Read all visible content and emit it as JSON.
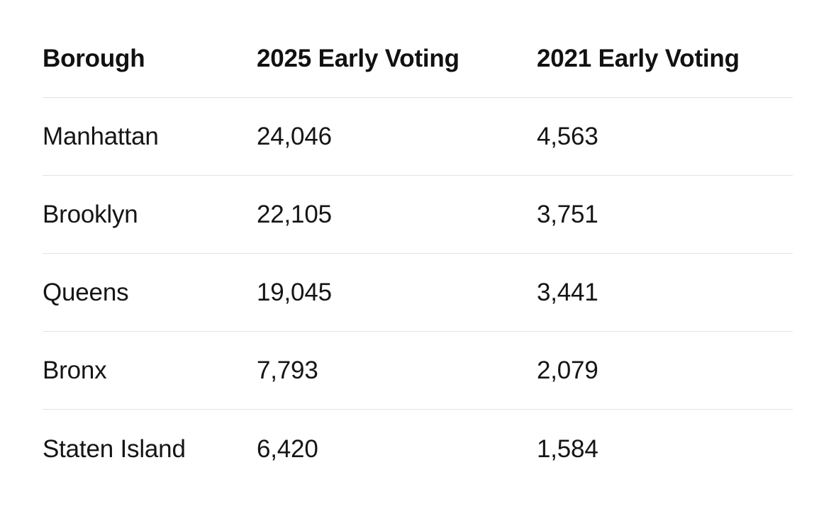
{
  "table": {
    "columns": [
      "Borough",
      "2025 Early Voting",
      "2021 Early Voting"
    ],
    "rows": [
      {
        "borough": "Manhattan",
        "ev2025": "24,046",
        "ev2021": "4,563"
      },
      {
        "borough": "Brooklyn",
        "ev2025": "22,105",
        "ev2021": "3,751"
      },
      {
        "borough": "Queens",
        "ev2025": "19,045",
        "ev2021": "3,441"
      },
      {
        "borough": "Bronx",
        "ev2025": "7,793",
        "ev2021": "2,079"
      },
      {
        "borough": "Staten Island",
        "ev2025": "6,420",
        "ev2021": "1,584"
      }
    ]
  },
  "chart_data": {
    "type": "table",
    "columns": [
      "Borough",
      "2025 Early Voting",
      "2021 Early Voting"
    ],
    "rows": [
      [
        "Manhattan",
        24046,
        4563
      ],
      [
        "Brooklyn",
        22105,
        3751
      ],
      [
        "Queens",
        19045,
        3441
      ],
      [
        "Bronx",
        7793,
        2079
      ],
      [
        "Staten Island",
        6420,
        1584
      ]
    ]
  },
  "colors": {
    "background": "#ffffff",
    "text": "#151515",
    "header_text": "#111111",
    "divider": "#e3e3e3"
  }
}
